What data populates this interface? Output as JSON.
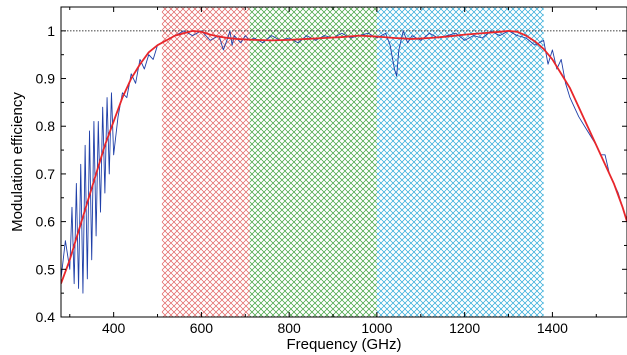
{
  "chart_data": {
    "type": "line",
    "title": "",
    "xlabel": "Frequency (GHz)",
    "ylabel": "Modulation efficiency",
    "xlim": [
      280,
      1570
    ],
    "ylim": [
      0.4,
      1.05
    ],
    "x_ticks": [
      400,
      600,
      800,
      1000,
      1200,
      1400
    ],
    "x_tick_labels": [
      "400",
      "600",
      "800",
      "1000",
      "1200",
      "1400"
    ],
    "y_ticks": [
      0.4,
      0.5,
      0.6,
      0.7,
      0.8,
      0.9,
      1.0
    ],
    "y_tick_labels": [
      "0.4",
      "0.5",
      "0.6",
      "0.7",
      "0.8",
      "0.9",
      "1"
    ],
    "grid": false,
    "reference_line": {
      "y": 1.0,
      "style": "dotted",
      "color": "#000000"
    },
    "bands": [
      {
        "x": [
          510,
          710
        ],
        "color": "#e06060"
      },
      {
        "x": [
          710,
          1000
        ],
        "color": "#3aa03a"
      },
      {
        "x": [
          1000,
          1380
        ],
        "color": "#29a8d8"
      }
    ],
    "series": [
      {
        "color": "#1f3fa8",
        "x": [
          280,
          290,
          300,
          305,
          310,
          315,
          320,
          325,
          330,
          335,
          340,
          345,
          350,
          355,
          360,
          365,
          370,
          375,
          380,
          385,
          390,
          395,
          400,
          410,
          420,
          430,
          440,
          450,
          460,
          470,
          480,
          490,
          500,
          520,
          540,
          560,
          580,
          600,
          620,
          640,
          650,
          660,
          665,
          670,
          675,
          680,
          690,
          700,
          710,
          720,
          740,
          760,
          780,
          800,
          820,
          840,
          860,
          880,
          900,
          920,
          940,
          960,
          980,
          1000,
          1010,
          1020,
          1030,
          1040,
          1045,
          1050,
          1060,
          1070,
          1080,
          1100,
          1120,
          1140,
          1160,
          1180,
          1200,
          1220,
          1240,
          1260,
          1280,
          1300,
          1320,
          1340,
          1360,
          1380,
          1390,
          1400,
          1410,
          1420,
          1430,
          1440,
          1450,
          1460,
          1480,
          1500,
          1510,
          1520,
          1530,
          1540,
          1550,
          1560,
          1570
        ],
        "y": [
          0.48,
          0.56,
          0.5,
          0.63,
          0.47,
          0.68,
          0.46,
          0.72,
          0.45,
          0.76,
          0.48,
          0.79,
          0.52,
          0.81,
          0.57,
          0.81,
          0.62,
          0.84,
          0.66,
          0.86,
          0.7,
          0.87,
          0.74,
          0.82,
          0.87,
          0.86,
          0.91,
          0.89,
          0.94,
          0.92,
          0.95,
          0.94,
          0.97,
          0.98,
          0.99,
          1.0,
          0.99,
          1.0,
          0.98,
          0.99,
          0.96,
          0.985,
          1.0,
          0.97,
          0.99,
          0.985,
          0.975,
          0.99,
          0.98,
          0.985,
          0.975,
          0.99,
          0.98,
          0.985,
          0.975,
          0.99,
          0.98,
          0.99,
          0.985,
          0.995,
          0.985,
          0.99,
          0.995,
          0.985,
          0.99,
          0.995,
          0.97,
          0.92,
          0.905,
          0.96,
          1.0,
          0.975,
          0.99,
          0.98,
          0.995,
          0.985,
          0.99,
          0.995,
          0.98,
          0.99,
          0.985,
          1.0,
          0.99,
          1.0,
          0.99,
          0.985,
          0.97,
          0.98,
          0.93,
          0.96,
          0.92,
          0.94,
          0.89,
          0.86,
          0.84,
          0.82,
          0.79,
          0.76,
          0.74,
          0.74,
          0.7,
          0.68,
          0.66,
          0.63,
          0.6
        ]
      },
      {
        "color": "#e8262b",
        "x": [
          280,
          300,
          320,
          340,
          360,
          380,
          400,
          420,
          440,
          460,
          480,
          500,
          520,
          540,
          560,
          580,
          600,
          620,
          640,
          660,
          680,
          700,
          720,
          760,
          800,
          840,
          880,
          920,
          960,
          1000,
          1040,
          1080,
          1120,
          1160,
          1200,
          1240,
          1280,
          1300,
          1320,
          1340,
          1360,
          1380,
          1400,
          1420,
          1440,
          1460,
          1480,
          1500,
          1520,
          1540,
          1560,
          1570
        ],
        "y": [
          0.47,
          0.52,
          0.58,
          0.64,
          0.7,
          0.76,
          0.81,
          0.86,
          0.9,
          0.93,
          0.955,
          0.97,
          0.98,
          0.99,
          0.995,
          1.0,
          0.998,
          0.992,
          0.988,
          0.985,
          0.983,
          0.982,
          0.981,
          0.98,
          0.981,
          0.983,
          0.985,
          0.987,
          0.99,
          0.988,
          0.985,
          0.983,
          0.985,
          0.988,
          0.992,
          0.995,
          0.998,
          1.0,
          0.998,
          0.99,
          0.978,
          0.962,
          0.94,
          0.91,
          0.88,
          0.84,
          0.8,
          0.76,
          0.72,
          0.68,
          0.63,
          0.6
        ]
      }
    ]
  }
}
